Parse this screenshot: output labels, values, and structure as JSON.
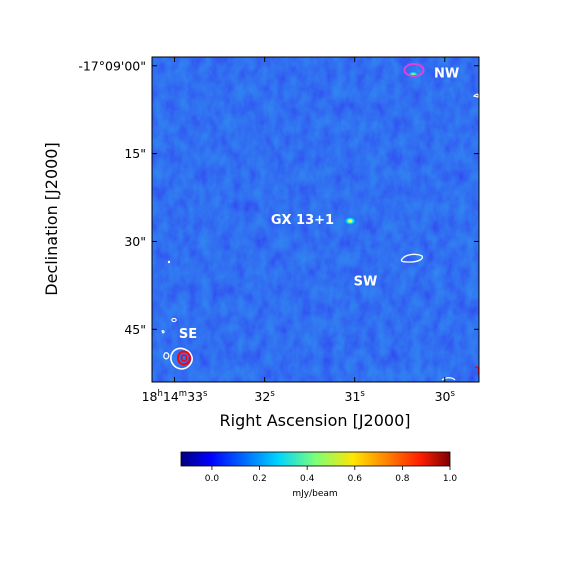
{
  "chart_data": {
    "type": "heatmap",
    "title": "",
    "xlabel": "Right Ascension [J2000]",
    "ylabel": "Declination [J2000]",
    "colormap": "jet",
    "x_ticks": [
      {
        "label_h": "18",
        "label_m": "14",
        "label_s": "33",
        "ra_s": 33
      },
      {
        "label": "32",
        "ra_s": 32
      },
      {
        "label": "31",
        "ra_s": 31
      },
      {
        "label": "30",
        "ra_s": 30
      }
    ],
    "y_ticks": [
      {
        "label": "-17°09'00\"",
        "dec_arcsec": 0
      },
      {
        "label": "15\"",
        "dec_arcsec": 15
      },
      {
        "label": "30\"",
        "dec_arcsec": 30
      },
      {
        "label": "45\"",
        "dec_arcsec": 45
      }
    ],
    "xlim_ra_s": [
      33.25,
      29.62
    ],
    "ylim_dec_arcsec": [
      -1.5,
      54.0
    ],
    "sources": [
      {
        "name": "GX 13+1",
        "ra_s": 31.05,
        "dec_arcsec": 26.5,
        "peak_mjy": 0.55
      },
      {
        "name": "NW",
        "ra_s": 30.35,
        "dec_arcsec": 1.5
      },
      {
        "name": "SW",
        "ra_s": 30.35,
        "dec_arcsec": 34.0
      },
      {
        "name": "SE",
        "ra_s": 32.95,
        "dec_arcsec": 50.0
      }
    ],
    "labels": [
      {
        "text": "GX 13+1",
        "ra_s": 31.58,
        "dec_arcsec": 27.0
      },
      {
        "text": "NW",
        "ra_s": 29.98,
        "dec_arcsec": 2.0
      },
      {
        "text": "SW",
        "ra_s": 30.88,
        "dec_arcsec": 37.5
      },
      {
        "text": "SE",
        "ra_s": 32.85,
        "dec_arcsec": 46.5
      }
    ],
    "colorbar": {
      "label": "mJy/beam",
      "range": [
        -0.13,
        1.0
      ],
      "ticks": [
        "0.0",
        "0.2",
        "0.4",
        "0.6",
        "0.8",
        "1.0"
      ],
      "tick_values": [
        0.0,
        0.2,
        0.4,
        0.6,
        0.8,
        1.0
      ]
    },
    "colors": {
      "background_map": "#1a3cf0",
      "contour_white": "#ffffff",
      "contour_magenta": "#e040e0",
      "contour_red": "#ff0000"
    }
  }
}
